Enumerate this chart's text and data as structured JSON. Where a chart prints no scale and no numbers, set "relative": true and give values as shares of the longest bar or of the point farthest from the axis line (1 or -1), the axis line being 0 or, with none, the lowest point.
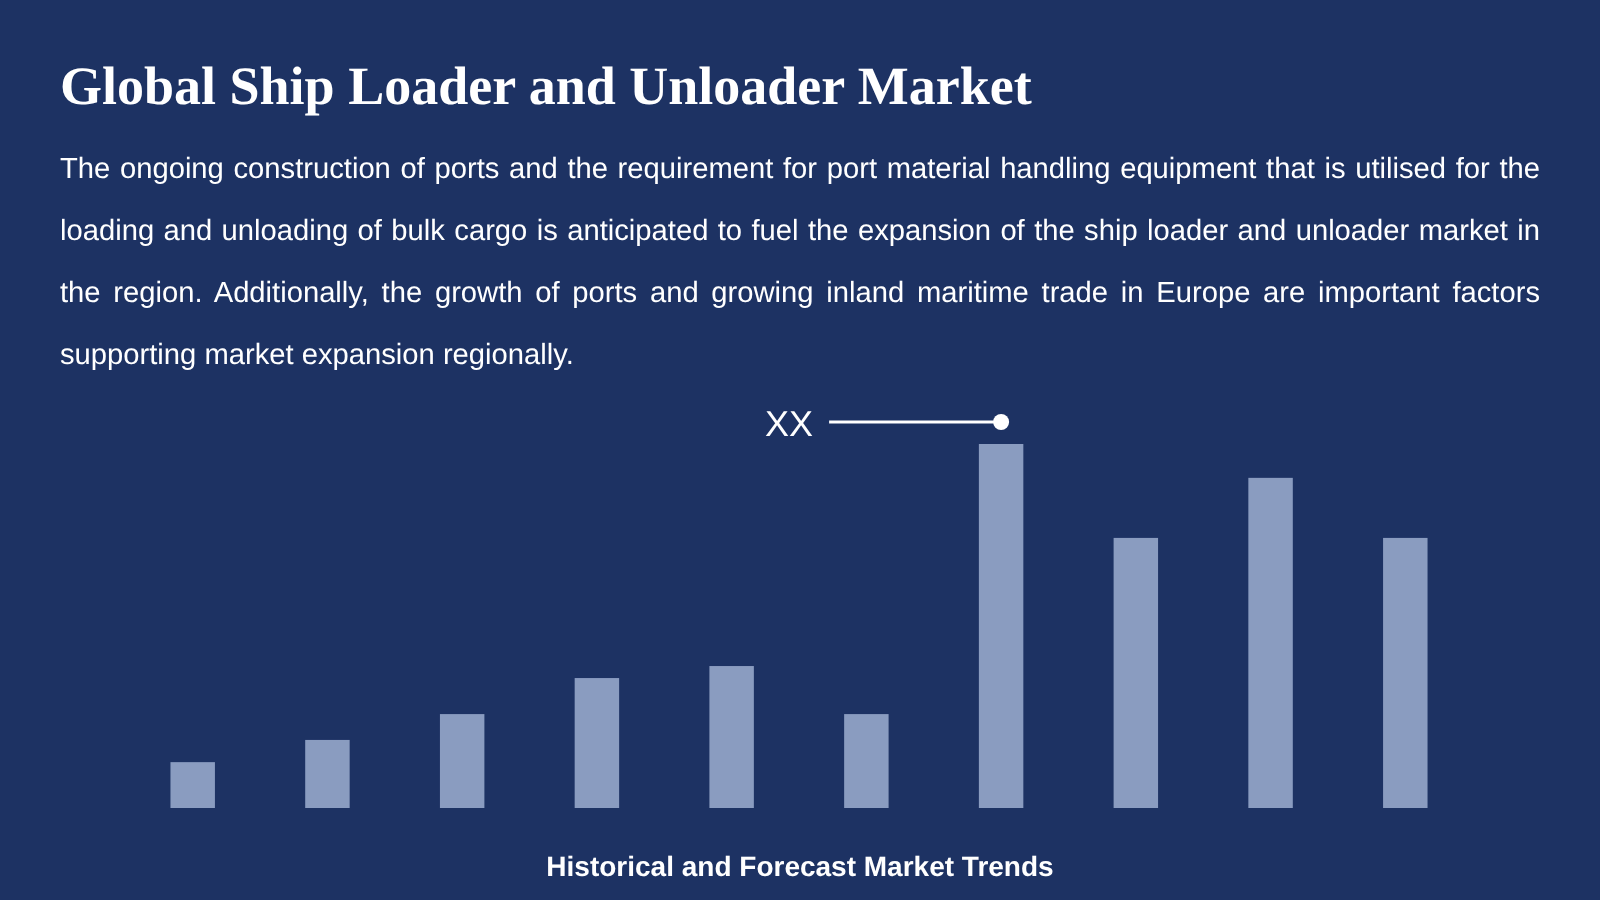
{
  "chart_data": {
    "type": "bar",
    "title": "Global Ship Loader and Unloader Market",
    "subtitle": "The ongoing construction of ports and the requirement for port material handling equipment that is utilised for the loading and unloading of bulk cargo is anticipated to fuel the expansion of the ship loader and unloader market in the region. Additionally, the growth of ports and growing inland maritime trade in Europe are important factors supporting market expansion regionally.",
    "xlabel": "Historical and Forecast Market Trends",
    "relative": true,
    "categories": [
      null,
      null,
      null,
      null,
      null,
      null,
      null,
      null,
      null,
      null
    ],
    "values": [
      0.126,
      0.187,
      0.258,
      0.357,
      0.39,
      0.258,
      1,
      0.742,
      0.907,
      0.742
    ],
    "color": "#8a9cc0",
    "annotations": [
      "XX"
    ]
  }
}
